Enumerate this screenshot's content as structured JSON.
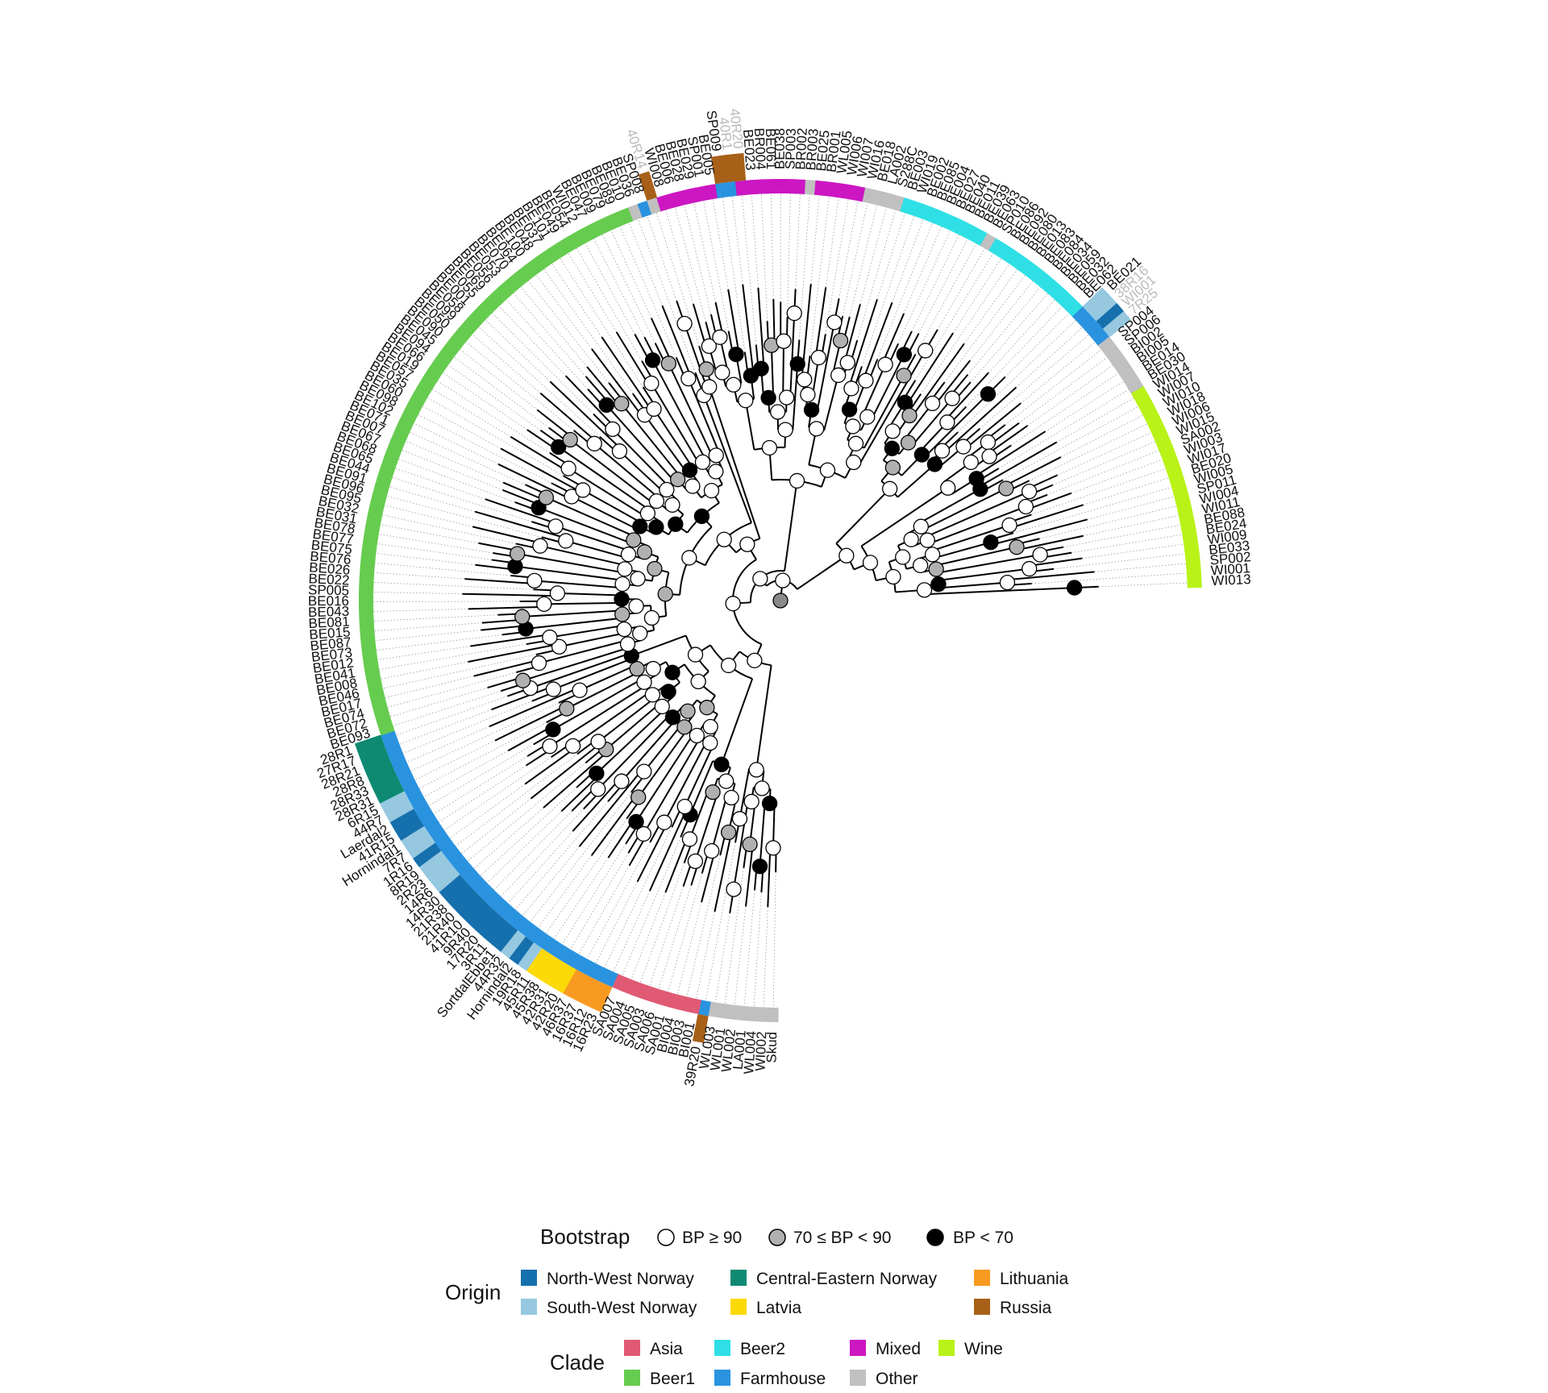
{
  "colors": {
    "Asia": "#e05a73",
    "Beer1": "#66cc4f",
    "Beer2": "#2ee0e5",
    "Farmhouse": "#2a93e0",
    "Mixed": "#cc16c2",
    "Other": "#c0c0c0",
    "Wine": "#b9f217",
    "North-West Norway": "#1670ad",
    "South-West Norway": "#96c8e0",
    "Central-Eastern Norway": "#0e8a73",
    "Latvia": "#fcd908",
    "Lithuania": "#f89a22",
    "Russia": "#a86018"
  },
  "clade_codes": {
    "A": "Asia",
    "B": "Beer1",
    "C": "Beer2",
    "F": "Farmhouse",
    "M": "Mixed",
    "O": "Other",
    "W": "Wine"
  },
  "origin_codes": {
    "N": "North-West Norway",
    "S": "South-West Norway",
    "C": "Central-Eastern Norway",
    "V": "Latvia",
    "L": "Lithuania",
    "R": "Russia",
    "-": ""
  },
  "tips": [
    {
      "name": "Skud",
      "clade": "O",
      "origin": "-"
    },
    {
      "name": "WI002",
      "clade": "O",
      "origin": "-"
    },
    {
      "name": "WL004",
      "clade": "O",
      "origin": "-"
    },
    {
      "name": "LA001",
      "clade": "O",
      "origin": "-"
    },
    {
      "name": "WL002",
      "clade": "O",
      "origin": "-"
    },
    {
      "name": "WL001",
      "clade": "O",
      "origin": "-"
    },
    {
      "name": "WL003",
      "clade": "O",
      "origin": "-"
    },
    {
      "name": "39R20",
      "clade": "F",
      "origin": "R"
    },
    {
      "name": "BI001",
      "clade": "A",
      "origin": "-"
    },
    {
      "name": "BI003",
      "clade": "A",
      "origin": "-"
    },
    {
      "name": "BI004",
      "clade": "A",
      "origin": "-"
    },
    {
      "name": "SA001",
      "clade": "A",
      "origin": "-"
    },
    {
      "name": "SA006",
      "clade": "A",
      "origin": "-"
    },
    {
      "name": "SA003",
      "clade": "A",
      "origin": "-"
    },
    {
      "name": "SA005",
      "clade": "A",
      "origin": "-"
    },
    {
      "name": "SA004",
      "clade": "A",
      "origin": "-"
    },
    {
      "name": "SA007",
      "clade": "A",
      "origin": "-"
    },
    {
      "name": "16R23",
      "clade": "F",
      "origin": "L"
    },
    {
      "name": "16R12",
      "clade": "F",
      "origin": "L"
    },
    {
      "name": "16R37",
      "clade": "F",
      "origin": "L"
    },
    {
      "name": "46R37",
      "clade": "F",
      "origin": "L"
    },
    {
      "name": "42R20",
      "clade": "F",
      "origin": "V"
    },
    {
      "name": "42R31",
      "clade": "F",
      "origin": "V"
    },
    {
      "name": "45R38",
      "clade": "F",
      "origin": "V"
    },
    {
      "name": "45R11",
      "clade": "F",
      "origin": "V"
    },
    {
      "name": "19R18",
      "clade": "F",
      "origin": "S"
    },
    {
      "name": "Hornindal2",
      "clade": "F",
      "origin": "N"
    },
    {
      "name": "44R32",
      "clade": "F",
      "origin": "S"
    },
    {
      "name": "SortdalEbbe1",
      "clade": "F",
      "origin": "N"
    },
    {
      "name": "3R11",
      "clade": "F",
      "origin": "N"
    },
    {
      "name": "17R20",
      "clade": "F",
      "origin": "N"
    },
    {
      "name": "9R40",
      "clade": "F",
      "origin": "N"
    },
    {
      "name": "41R10",
      "clade": "F",
      "origin": "N"
    },
    {
      "name": "21R40",
      "clade": "F",
      "origin": "N"
    },
    {
      "name": "21R38",
      "clade": "F",
      "origin": "N"
    },
    {
      "name": "14R30",
      "clade": "F",
      "origin": "N"
    },
    {
      "name": "14R6",
      "clade": "F",
      "origin": "S"
    },
    {
      "name": "2R23",
      "clade": "F",
      "origin": "S"
    },
    {
      "name": "8R19",
      "clade": "F",
      "origin": "S"
    },
    {
      "name": "1R16",
      "clade": "F",
      "origin": "N"
    },
    {
      "name": "7R7",
      "clade": "F",
      "origin": "S"
    },
    {
      "name": "Hornindal1",
      "clade": "F",
      "origin": "S"
    },
    {
      "name": "41R15",
      "clade": "F",
      "origin": "N"
    },
    {
      "name": "Laerdal2",
      "clade": "F",
      "origin": "N"
    },
    {
      "name": "44R7",
      "clade": "F",
      "origin": "S"
    },
    {
      "name": "6R15",
      "clade": "F",
      "origin": "S"
    },
    {
      "name": "28R31",
      "clade": "F",
      "origin": "C"
    },
    {
      "name": "28R33",
      "clade": "F",
      "origin": "C"
    },
    {
      "name": "28R8",
      "clade": "F",
      "origin": "C"
    },
    {
      "name": "28R21",
      "clade": "F",
      "origin": "C"
    },
    {
      "name": "27R17",
      "clade": "F",
      "origin": "C"
    },
    {
      "name": "28R1",
      "clade": "F",
      "origin": "C"
    },
    {
      "name": "BE093",
      "clade": "B",
      "origin": "-"
    },
    {
      "name": "BE072",
      "clade": "B",
      "origin": "-"
    },
    {
      "name": "BE074",
      "clade": "B",
      "origin": "-"
    },
    {
      "name": "BE017",
      "clade": "B",
      "origin": "-"
    },
    {
      "name": "BE046",
      "clade": "B",
      "origin": "-"
    },
    {
      "name": "BE008",
      "clade": "B",
      "origin": "-"
    },
    {
      "name": "BE041",
      "clade": "B",
      "origin": "-"
    },
    {
      "name": "BE012",
      "clade": "B",
      "origin": "-"
    },
    {
      "name": "BE073",
      "clade": "B",
      "origin": "-"
    },
    {
      "name": "BE087",
      "clade": "B",
      "origin": "-"
    },
    {
      "name": "BE015",
      "clade": "B",
      "origin": "-"
    },
    {
      "name": "BE081",
      "clade": "B",
      "origin": "-"
    },
    {
      "name": "BE043",
      "clade": "B",
      "origin": "-"
    },
    {
      "name": "BE016",
      "clade": "B",
      "origin": "-"
    },
    {
      "name": "SP005",
      "clade": "B",
      "origin": "-"
    },
    {
      "name": "BE022",
      "clade": "B",
      "origin": "-"
    },
    {
      "name": "BE026",
      "clade": "B",
      "origin": "-"
    },
    {
      "name": "BE076",
      "clade": "B",
      "origin": "-"
    },
    {
      "name": "BE075",
      "clade": "B",
      "origin": "-"
    },
    {
      "name": "BE077",
      "clade": "B",
      "origin": "-"
    },
    {
      "name": "BE078",
      "clade": "B",
      "origin": "-"
    },
    {
      "name": "BE031",
      "clade": "B",
      "origin": "-"
    },
    {
      "name": "BE032",
      "clade": "B",
      "origin": "-"
    },
    {
      "name": "BE095",
      "clade": "B",
      "origin": "-"
    },
    {
      "name": "BE096",
      "clade": "B",
      "origin": "-"
    },
    {
      "name": "BE091x",
      "clade": "B",
      "origin": "-"
    },
    {
      "name": "BE044",
      "clade": "B",
      "origin": "-"
    },
    {
      "name": "BE065",
      "clade": "B",
      "origin": "-"
    },
    {
      "name": "BE068",
      "clade": "B",
      "origin": "-"
    },
    {
      "name": "BE067",
      "clade": "B",
      "origin": "-"
    },
    {
      "name": "BE007",
      "clade": "B",
      "origin": "-"
    },
    {
      "name": "BE071",
      "clade": "B",
      "origin": "-"
    },
    {
      "name": "BE102",
      "clade": "B",
      "origin": "-"
    },
    {
      "name": "BE098",
      "clade": "B",
      "origin": "-"
    },
    {
      "name": "BE060",
      "clade": "B",
      "origin": "-"
    },
    {
      "name": "BE035",
      "clade": "B",
      "origin": "-"
    },
    {
      "name": "BE057",
      "clade": "B",
      "origin": "-"
    },
    {
      "name": "BE019",
      "clade": "B",
      "origin": "-"
    },
    {
      "name": "BE066",
      "clade": "B",
      "origin": "-"
    },
    {
      "name": "BE094",
      "clade": "B",
      "origin": "-"
    },
    {
      "name": "BE045",
      "clade": "B",
      "origin": "-"
    },
    {
      "name": "BE090",
      "clade": "B",
      "origin": "-"
    },
    {
      "name": "BE050",
      "clade": "B",
      "origin": "-"
    },
    {
      "name": "BE099",
      "clade": "B",
      "origin": "-"
    },
    {
      "name": "BE058",
      "clade": "B",
      "origin": "-"
    },
    {
      "name": "BE001",
      "clade": "B",
      "origin": "-"
    },
    {
      "name": "BE055",
      "clade": "B",
      "origin": "-"
    },
    {
      "name": "BE069",
      "clade": "B",
      "origin": "-"
    },
    {
      "name": "BE056",
      "clade": "B",
      "origin": "-"
    },
    {
      "name": "BE053",
      "clade": "B",
      "origin": "-"
    },
    {
      "name": "BE070",
      "clade": "B",
      "origin": "-"
    },
    {
      "name": "BE064",
      "clade": "B",
      "origin": "-"
    },
    {
      "name": "BE100",
      "clade": "B",
      "origin": "-"
    },
    {
      "name": "BE048",
      "clade": "B",
      "origin": "-"
    },
    {
      "name": "BE037",
      "clade": "B",
      "origin": "-"
    },
    {
      "name": "BE101",
      "clade": "B",
      "origin": "-"
    },
    {
      "name": "BE049",
      "clade": "B",
      "origin": "-"
    },
    {
      "name": "BE054",
      "clade": "B",
      "origin": "-"
    },
    {
      "name": "WI012",
      "clade": "B",
      "origin": "-"
    },
    {
      "name": "BE047",
      "clade": "B",
      "origin": "-"
    },
    {
      "name": "BE009",
      "clade": "B",
      "origin": "-"
    },
    {
      "name": "BE079",
      "clade": "B",
      "origin": "-"
    },
    {
      "name": "BE089",
      "clade": "B",
      "origin": "-"
    },
    {
      "name": "BE010",
      "clade": "B",
      "origin": "-"
    },
    {
      "name": "BE036",
      "clade": "O",
      "origin": "-"
    },
    {
      "name": "SP008",
      "clade": "F",
      "origin": "-"
    },
    {
      "name": "40R14",
      "clade": "O",
      "origin": "R",
      "faded": true
    },
    {
      "name": "WI008",
      "clade": "M",
      "origin": "-"
    },
    {
      "name": "BE006",
      "clade": "M",
      "origin": "-"
    },
    {
      "name": "BE028",
      "clade": "M",
      "origin": "-"
    },
    {
      "name": "BE029",
      "clade": "M",
      "origin": "-"
    },
    {
      "name": "SP001",
      "clade": "M",
      "origin": "-"
    },
    {
      "name": "BE005",
      "clade": "M",
      "origin": "-"
    },
    {
      "name": "SP009",
      "clade": "F",
      "origin": "R"
    },
    {
      "name": "40R1",
      "clade": "F",
      "origin": "R",
      "faded": true
    },
    {
      "name": "40R20",
      "clade": "M",
      "origin": "R",
      "faded": true
    },
    {
      "name": "BE023",
      "clade": "M",
      "origin": "-"
    },
    {
      "name": "BR004",
      "clade": "M",
      "origin": "-"
    },
    {
      "name": "BE061",
      "clade": "M",
      "origin": "-"
    },
    {
      "name": "BE038",
      "clade": "M",
      "origin": "-"
    },
    {
      "name": "SP003",
      "clade": "M",
      "origin": "-"
    },
    {
      "name": "BR002",
      "clade": "M",
      "origin": "-"
    },
    {
      "name": "BR003",
      "clade": "O",
      "origin": "-"
    },
    {
      "name": "BE025",
      "clade": "M",
      "origin": "-"
    },
    {
      "name": "BR001",
      "clade": "M",
      "origin": "-"
    },
    {
      "name": "WL005",
      "clade": "M",
      "origin": "-"
    },
    {
      "name": "WI006",
      "clade": "M",
      "origin": "-"
    },
    {
      "name": "WI007",
      "clade": "M",
      "origin": "-"
    },
    {
      "name": "WI016",
      "clade": "O",
      "origin": "-"
    },
    {
      "name": "BE018",
      "clade": "O",
      "origin": "-"
    },
    {
      "name": "LA002",
      "clade": "O",
      "origin": "-"
    },
    {
      "name": "S288C",
      "clade": "O",
      "origin": "-"
    },
    {
      "name": "BE003",
      "clade": "C",
      "origin": "-"
    },
    {
      "name": "WI019",
      "clade": "C",
      "origin": "-"
    },
    {
      "name": "BE002",
      "clade": "C",
      "origin": "-"
    },
    {
      "name": "BE085",
      "clade": "C",
      "origin": "-"
    },
    {
      "name": "BE004",
      "clade": "C",
      "origin": "-"
    },
    {
      "name": "BE027",
      "clade": "C",
      "origin": "-"
    },
    {
      "name": "BE040",
      "clade": "C",
      "origin": "-"
    },
    {
      "name": "BE011",
      "clade": "C",
      "origin": "-"
    },
    {
      "name": "BE039",
      "clade": "C",
      "origin": "-"
    },
    {
      "name": "BE063",
      "clade": "O",
      "origin": "-"
    },
    {
      "name": "SP010",
      "clade": "C",
      "origin": "-"
    },
    {
      "name": "BE086",
      "clade": "C",
      "origin": "-"
    },
    {
      "name": "BE092",
      "clade": "C",
      "origin": "-"
    },
    {
      "name": "BE080",
      "clade": "C",
      "origin": "-"
    },
    {
      "name": "BE013",
      "clade": "C",
      "origin": "-"
    },
    {
      "name": "BE083",
      "clade": "C",
      "origin": "-"
    },
    {
      "name": "BE084",
      "clade": "C",
      "origin": "-"
    },
    {
      "name": "BE034",
      "clade": "C",
      "origin": "-"
    },
    {
      "name": "BE059",
      "clade": "C",
      "origin": "-"
    },
    {
      "name": "BE032",
      "clade": "C",
      "origin": "-"
    },
    {
      "name": "BE062",
      "clade": "C",
      "origin": "-"
    },
    {
      "name": "BE021",
      "clade": "F",
      "origin": "S"
    },
    {
      "name": "38R16",
      "clade": "F",
      "origin": "S",
      "faded": true
    },
    {
      "name": "WI001x",
      "clade": "F",
      "origin": "N",
      "faded": true
    },
    {
      "name": "7R25",
      "clade": "F",
      "origin": "S",
      "faded": true
    },
    {
      "name": "SP004",
      "clade": "O",
      "origin": "-"
    },
    {
      "name": "SP006",
      "clade": "O",
      "origin": "-"
    },
    {
      "name": "BI002",
      "clade": "O",
      "origin": "-"
    },
    {
      "name": "BI005",
      "clade": "O",
      "origin": "-"
    },
    {
      "name": "BE014",
      "clade": "O",
      "origin": "-"
    },
    {
      "name": "BE030",
      "clade": "O",
      "origin": "-"
    },
    {
      "name": "WI014",
      "clade": "W",
      "origin": "-"
    },
    {
      "name": "WI007",
      "clade": "W",
      "origin": "-"
    },
    {
      "name": "WI010",
      "clade": "W",
      "origin": "-"
    },
    {
      "name": "WI018",
      "clade": "W",
      "origin": "-"
    },
    {
      "name": "WI006",
      "clade": "W",
      "origin": "-"
    },
    {
      "name": "WI015",
      "clade": "W",
      "origin": "-"
    },
    {
      "name": "SA002",
      "clade": "W",
      "origin": "-"
    },
    {
      "name": "WI003",
      "clade": "W",
      "origin": "-"
    },
    {
      "name": "WI017",
      "clade": "W",
      "origin": "-"
    },
    {
      "name": "BE020",
      "clade": "W",
      "origin": "-"
    },
    {
      "name": "WI005",
      "clade": "W",
      "origin": "-"
    },
    {
      "name": "SP011",
      "clade": "W",
      "origin": "-"
    },
    {
      "name": "WI004",
      "clade": "W",
      "origin": "-"
    },
    {
      "name": "WI011",
      "clade": "W",
      "origin": "-"
    },
    {
      "name": "BE088",
      "clade": "W",
      "origin": "-"
    },
    {
      "name": "BE024",
      "clade": "W",
      "origin": "-"
    },
    {
      "name": "WI009",
      "clade": "W",
      "origin": "-"
    },
    {
      "name": "BE033",
      "clade": "W",
      "origin": "-"
    },
    {
      "name": "SP002",
      "clade": "W",
      "origin": "-"
    },
    {
      "name": "WI001",
      "clade": "W",
      "origin": "-"
    },
    {
      "name": "WI013",
      "clade": "W",
      "origin": "-"
    }
  ],
  "legend": {
    "bootstrap": {
      "title": "Bootstrap",
      "items": [
        {
          "label": "BP ≥ 90",
          "fill": "#ffffff"
        },
        {
          "label": "70 ≤ BP < 90",
          "fill": "#b0b0b0"
        },
        {
          "label": "BP < 70",
          "fill": "#000000"
        }
      ]
    },
    "origin": {
      "title": "Origin",
      "items": [
        {
          "label": "North-West Norway",
          "key": "North-West Norway"
        },
        {
          "label": "Central-Eastern Norway",
          "key": "Central-Eastern Norway"
        },
        {
          "label": "Lithuania",
          "key": "Lithuania"
        },
        {
          "label": "South-West Norway",
          "key": "South-West Norway"
        },
        {
          "label": "Latvia",
          "key": "Latvia"
        },
        {
          "label": "Russia",
          "key": "Russia"
        }
      ]
    },
    "clade": {
      "title": "Clade",
      "items": [
        {
          "label": "Asia",
          "key": "Asia"
        },
        {
          "label": "Beer2",
          "key": "Beer2"
        },
        {
          "label": "Mixed",
          "key": "Mixed"
        },
        {
          "label": "Wine",
          "key": "Wine"
        },
        {
          "label": "Beer1",
          "key": "Beer1"
        },
        {
          "label": "Farmhouse",
          "key": "Farmhouse"
        },
        {
          "label": "Other",
          "key": "Other"
        }
      ]
    }
  }
}
